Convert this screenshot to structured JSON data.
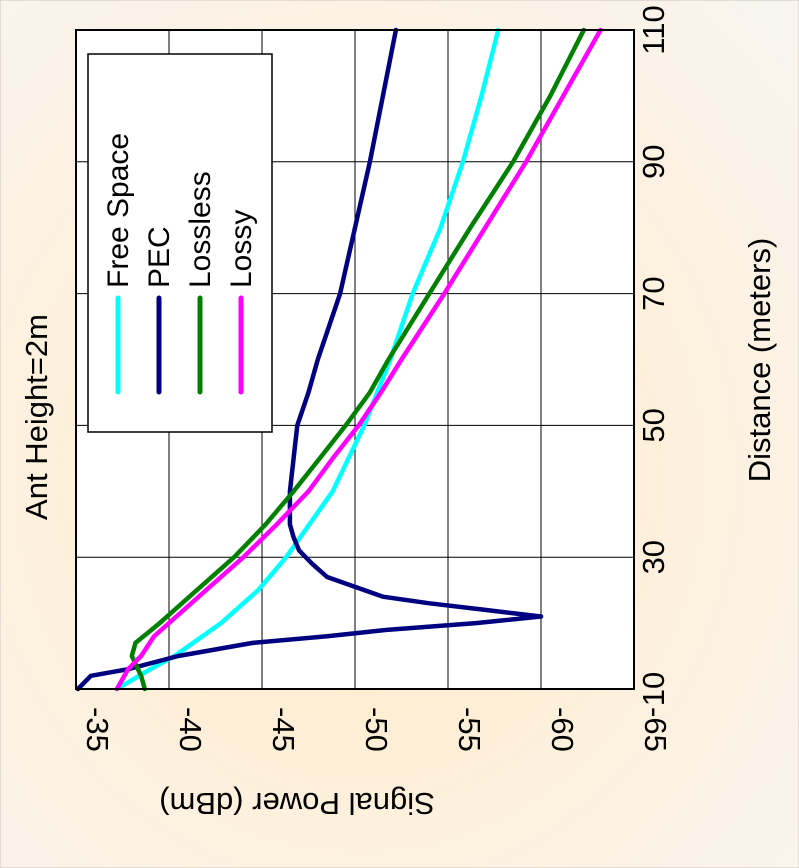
{
  "chart_data": {
    "type": "line",
    "title": "Ant Height=2m",
    "xlabel": "Distance (meters)",
    "ylabel": "Signal Power (dBm)",
    "xlim": [
      10,
      110
    ],
    "ylim": [
      -65,
      -35
    ],
    "x_ticks": [
      10,
      30,
      50,
      70,
      90,
      110
    ],
    "x_tick_labels": [
      "10",
      "30",
      "50",
      "70",
      "90",
      "110"
    ],
    "y_ticks": [
      -35,
      -40,
      -45,
      -50,
      -55,
      -60,
      -65
    ],
    "y_tick_labels": [
      "-35",
      "-40",
      "-45",
      "-50",
      "-55",
      "-60",
      "-65"
    ],
    "grid": true,
    "legend_position": "top-left",
    "series": [
      {
        "name": "Free Space",
        "color": "#00ffff",
        "x": [
          10,
          13,
          15,
          20,
          25,
          30,
          40,
          50,
          60,
          70,
          80,
          90,
          100,
          110
        ],
        "y": [
          -37.2,
          -39.0,
          -40.3,
          -42.8,
          -44.8,
          -46.3,
          -48.8,
          -50.5,
          -51.9,
          -53.1,
          -54.6,
          -55.8,
          -56.8,
          -57.7
        ]
      },
      {
        "name": "PEC",
        "color": "#000080",
        "x": [
          10,
          12,
          13,
          15,
          17,
          18,
          19,
          20,
          21,
          22,
          23,
          24,
          25,
          27,
          29,
          31,
          33,
          35,
          40,
          45,
          50,
          55,
          60,
          70,
          80,
          90,
          100,
          110
        ],
        "y": [
          -35.1,
          -35.8,
          -37.8,
          -40.5,
          -44.5,
          -48.5,
          -51.8,
          -56.5,
          -60.0,
          -57.0,
          -54.0,
          -51.5,
          -50.5,
          -48.5,
          -47.7,
          -47.0,
          -46.7,
          -46.5,
          -46.5,
          -46.7,
          -46.9,
          -47.5,
          -48.0,
          -49.2,
          -50.0,
          -50.8,
          -51.5,
          -52.2
        ]
      },
      {
        "name": "Lossless",
        "color": "#008000",
        "x": [
          10,
          12,
          15,
          17,
          20,
          25,
          30,
          35,
          40,
          45,
          50,
          55,
          60,
          70,
          80,
          90,
          100,
          110
        ],
        "y": [
          -38.7,
          -38.5,
          -38.0,
          -38.2,
          -39.5,
          -41.5,
          -43.5,
          -45.2,
          -46.7,
          -48.1,
          -49.5,
          -50.8,
          -51.8,
          -54.0,
          -56.2,
          -58.5,
          -60.5,
          -62.3
        ]
      },
      {
        "name": "Lossy",
        "color": "#ff00ff",
        "x": [
          10,
          13,
          15,
          18,
          20,
          25,
          30,
          35,
          40,
          45,
          50,
          55,
          60,
          70,
          80,
          90,
          100,
          110
        ],
        "y": [
          -37.2,
          -37.8,
          -38.5,
          -39.2,
          -40.0,
          -42.0,
          -44.0,
          -45.8,
          -47.5,
          -48.8,
          -50.2,
          -51.4,
          -52.5,
          -54.8,
          -57.0,
          -59.2,
          -61.2,
          -63.2
        ]
      }
    ]
  }
}
